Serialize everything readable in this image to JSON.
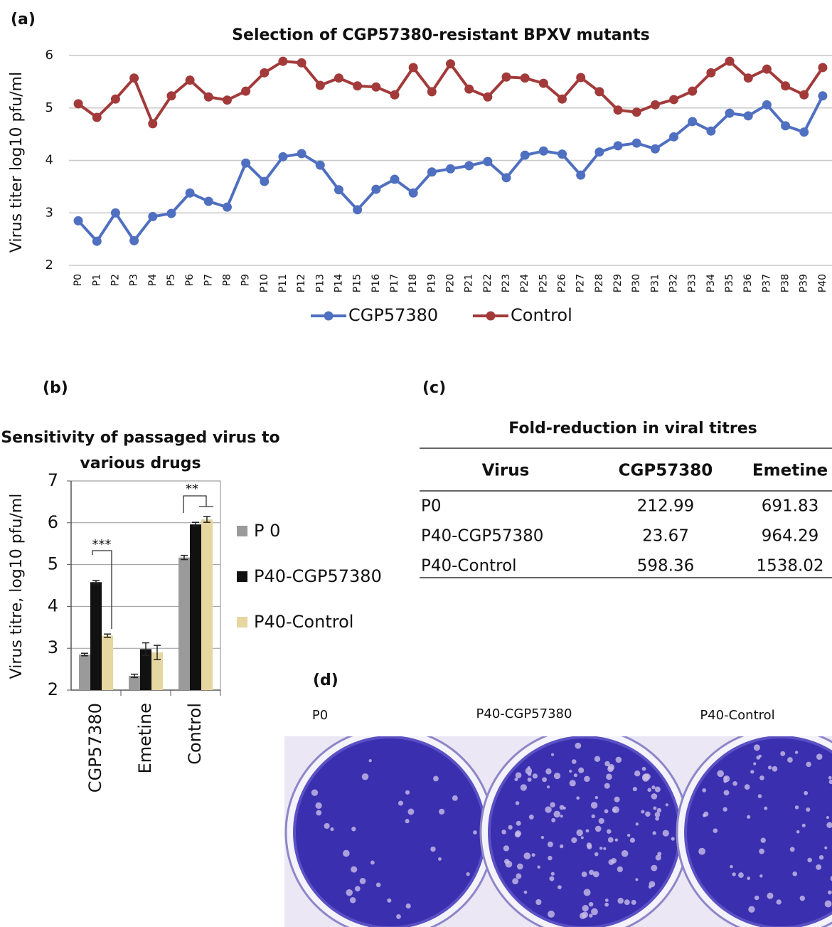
{
  "panel_labels": [
    "(a)",
    "(b)",
    "(c)",
    "(d)"
  ],
  "chart_data": [
    {
      "type": "line",
      "title": "Selection of CGP57380-resistant BPXV mutants",
      "ylabel": "Virus titer log10 pfu/ml",
      "categories": [
        "P0",
        "P1",
        "P2",
        "P3",
        "P4",
        "P5",
        "P6",
        "P7",
        "P8",
        "P9",
        "P10",
        "P11",
        "P12",
        "P13",
        "P14",
        "P15",
        "P16",
        "P17",
        "P18",
        "P19",
        "P20",
        "P21",
        "P22",
        "P23",
        "P24",
        "P25",
        "P26",
        "P27",
        "P28",
        "P29",
        "P30",
        "P31",
        "P32",
        "P33",
        "P34",
        "P35",
        "P36",
        "P37",
        "P38",
        "P39",
        "P40"
      ],
      "series": [
        {
          "name": "CGP57380",
          "color": "#4f6fc0",
          "values": [
            2.85,
            2.46,
            3.0,
            2.47,
            2.93,
            2.99,
            3.38,
            3.22,
            3.11,
            3.95,
            3.6,
            4.07,
            4.13,
            3.91,
            3.44,
            3.06,
            3.45,
            3.64,
            3.38,
            3.78,
            3.84,
            3.9,
            3.98,
            3.67,
            4.1,
            4.18,
            4.12,
            3.72,
            4.16,
            4.28,
            4.33,
            4.22,
            4.45,
            4.74,
            4.56,
            4.9,
            4.85,
            5.06,
            4.66,
            4.54,
            5.23
          ]
        },
        {
          "name": "Control",
          "color": "#a33a3a",
          "values": [
            5.08,
            4.82,
            5.17,
            5.57,
            4.7,
            5.23,
            5.53,
            5.21,
            5.15,
            5.32,
            5.67,
            5.89,
            5.86,
            5.43,
            5.57,
            5.42,
            5.4,
            5.25,
            5.77,
            5.31,
            5.84,
            5.36,
            5.21,
            5.59,
            5.57,
            5.47,
            5.17,
            5.58,
            5.31,
            4.96,
            4.92,
            5.06,
            5.16,
            5.32,
            5.67,
            5.89,
            5.57,
            5.74,
            5.42,
            5.25,
            5.77
          ]
        }
      ],
      "ylim": [
        2,
        6
      ],
      "yticks": [
        2,
        3,
        4,
        5,
        6
      ],
      "grid": true,
      "legend": "bottom"
    },
    {
      "type": "bar",
      "title": "Sensitivity of passaged virus to various drugs",
      "ylabel": "Virus titre, log10 pfu/ml",
      "categories": [
        "CGP57380",
        "Emetine",
        "Control"
      ],
      "series": [
        {
          "name": "P 0",
          "color": "#9a9a9a",
          "values": [
            2.85,
            2.34,
            5.17
          ],
          "errors": [
            0.03,
            0.04,
            0.05
          ]
        },
        {
          "name": "P40-CGP57380",
          "color": "#111111",
          "values": [
            4.58,
            2.98,
            5.96
          ],
          "errors": [
            0.04,
            0.15,
            0.05
          ]
        },
        {
          "name": "P40-Control",
          "color": "#e6d6a0",
          "values": [
            3.3,
            2.9,
            6.08
          ],
          "errors": [
            0.04,
            0.17,
            0.07
          ]
        }
      ],
      "ylim": [
        2,
        7
      ],
      "yticks": [
        2,
        3,
        4,
        5,
        6,
        7
      ],
      "grid": true,
      "legend": "right",
      "annotations": [
        "***",
        "**"
      ]
    }
  ],
  "table": {
    "title": "Fold-reduction in viral titres",
    "columns": [
      "Virus",
      "CGP57380",
      "Emetine"
    ],
    "rows": [
      [
        "P0",
        212.99,
        691.83
      ],
      [
        "P40-CGP57380",
        23.67,
        964.29
      ],
      [
        "P40-Control",
        598.36,
        1538.02
      ]
    ]
  },
  "plates": {
    "labels": [
      "P0",
      "P40-CGP57380",
      "P40-Control"
    ]
  }
}
